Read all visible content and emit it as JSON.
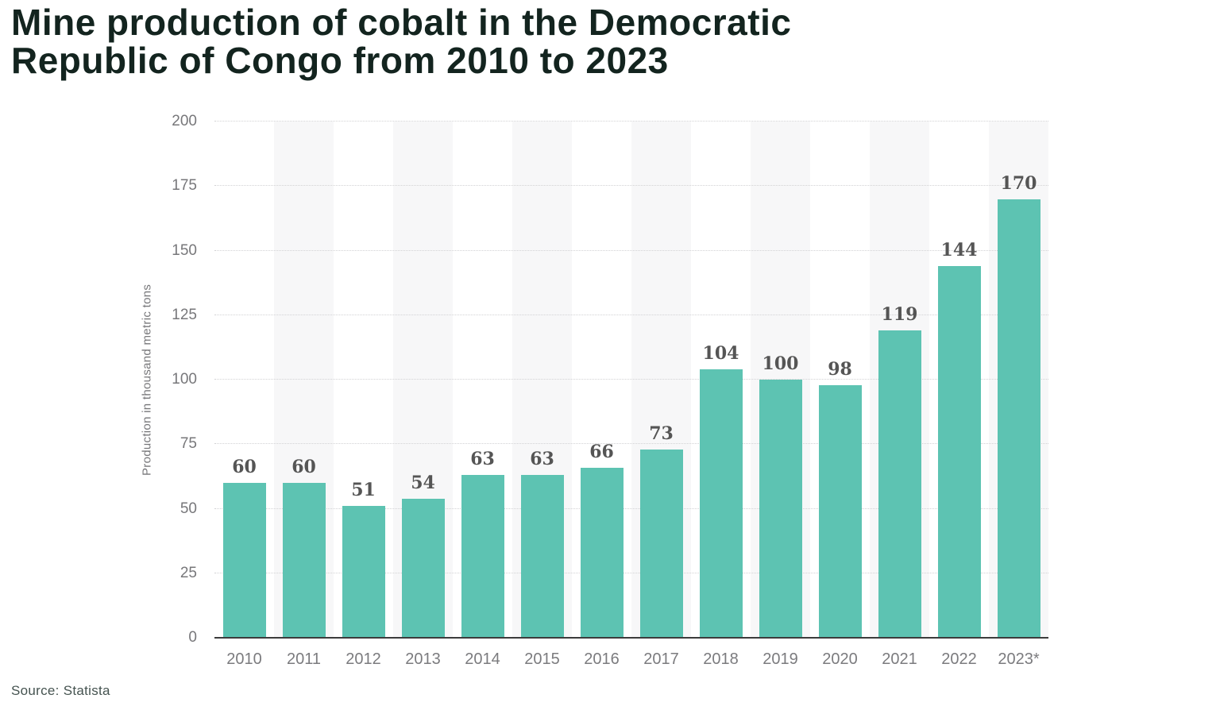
{
  "title": {
    "full": "Mine production of cobalt in the Democratic Republic of Congo from 2010 to 2023",
    "line1": "Mine production of cobalt in the Democratic",
    "line2": "Republic of Congo from 2010 to 2023"
  },
  "source": "Source: Statista",
  "chart_data": {
    "type": "bar",
    "title": "Mine production of cobalt in the Democratic Republic of Congo from 2010 to 2023",
    "categories": [
      "2010",
      "2011",
      "2012",
      "2013",
      "2014",
      "2015",
      "2016",
      "2017",
      "2018",
      "2019",
      "2020",
      "2021",
      "2022",
      "2023*"
    ],
    "values": [
      60,
      60,
      51,
      54,
      63,
      63,
      66,
      73,
      104,
      100,
      98,
      119,
      144,
      170
    ],
    "xlabel": "",
    "ylabel": "Production in thousand metric tons",
    "ylim": [
      0,
      200
    ],
    "yticks": [
      0,
      25,
      50,
      75,
      100,
      125,
      150,
      175,
      200
    ],
    "grid": "horizontal-dotted",
    "legend": "none",
    "colors": {
      "bar": "#5dc3b2",
      "band": "#f7f7f8",
      "gridline": "#d2d2d4",
      "axis_line": "#3c3c3c",
      "tick_label": "#77777a",
      "value_label": "#555555",
      "title": "#13241f",
      "source": "#455350"
    }
  }
}
